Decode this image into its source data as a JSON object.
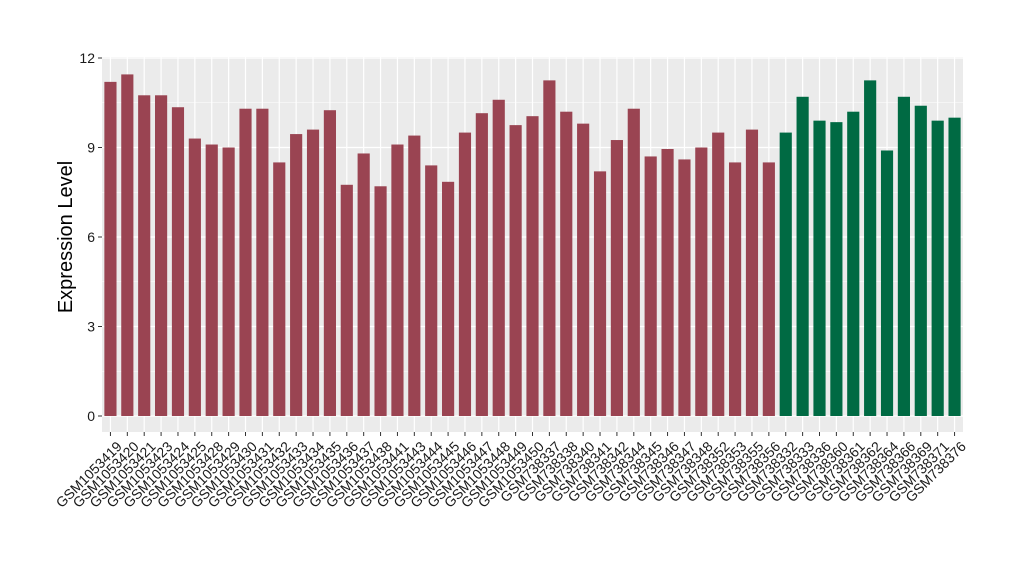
{
  "chart_data": {
    "type": "bar",
    "title": "",
    "xlabel": "",
    "ylabel": "Expression Level",
    "ylim": [
      0,
      12
    ],
    "yticks": [
      0,
      3,
      6,
      9,
      12
    ],
    "grid": true,
    "legend": "none",
    "colors": {
      "group1": "#9a4452",
      "group2": "#006a43",
      "panel": "#ebebeb",
      "gridline": "#ffffff"
    },
    "categories": [
      "GSM1053419",
      "GSM1053420",
      "GSM1053421",
      "GSM1053423",
      "GSM1053424",
      "GSM1053425",
      "GSM1053428",
      "GSM1053429",
      "GSM1053430",
      "GSM1053431",
      "GSM1053432",
      "GSM1053433",
      "GSM1053434",
      "GSM1053435",
      "GSM1053436",
      "GSM1053437",
      "GSM1053438",
      "GSM1053441",
      "GSM1053443",
      "GSM1053444",
      "GSM1053445",
      "GSM1053446",
      "GSM1053447",
      "GSM1053448",
      "GSM1053449",
      "GSM1053450",
      "GSM738337",
      "GSM738338",
      "GSM738340",
      "GSM738341",
      "GSM738342",
      "GSM738344",
      "GSM738345",
      "GSM738346",
      "GSM738347",
      "GSM738348",
      "GSM738352",
      "GSM738353",
      "GSM738355",
      "GSM738356",
      "GSM738332",
      "GSM738333",
      "GSM738336",
      "GSM738360",
      "GSM738361",
      "GSM738362",
      "GSM738364",
      "GSM738366",
      "GSM738369",
      "GSM738371",
      "GSM738376"
    ],
    "values": [
      11.2,
      11.45,
      10.75,
      10.75,
      10.35,
      9.3,
      9.1,
      9.0,
      10.3,
      10.3,
      8.5,
      9.45,
      9.6,
      10.25,
      7.75,
      8.8,
      7.7,
      9.1,
      9.4,
      8.4,
      7.85,
      9.5,
      10.15,
      10.6,
      9.75,
      10.05,
      11.25,
      10.2,
      9.8,
      8.2,
      9.25,
      10.3,
      8.7,
      8.95,
      8.6,
      9.0,
      9.5,
      8.5,
      9.6,
      8.5,
      9.5,
      10.7,
      9.9,
      9.85,
      10.2,
      11.25,
      8.9,
      10.7,
      10.4,
      9.9,
      10.0
    ],
    "groups": [
      1,
      1,
      1,
      1,
      1,
      1,
      1,
      1,
      1,
      1,
      1,
      1,
      1,
      1,
      1,
      1,
      1,
      1,
      1,
      1,
      1,
      1,
      1,
      1,
      1,
      1,
      1,
      1,
      1,
      1,
      1,
      1,
      1,
      1,
      1,
      1,
      1,
      1,
      1,
      1,
      2,
      2,
      2,
      2,
      2,
      2,
      2,
      2,
      2,
      2,
      2
    ]
  }
}
